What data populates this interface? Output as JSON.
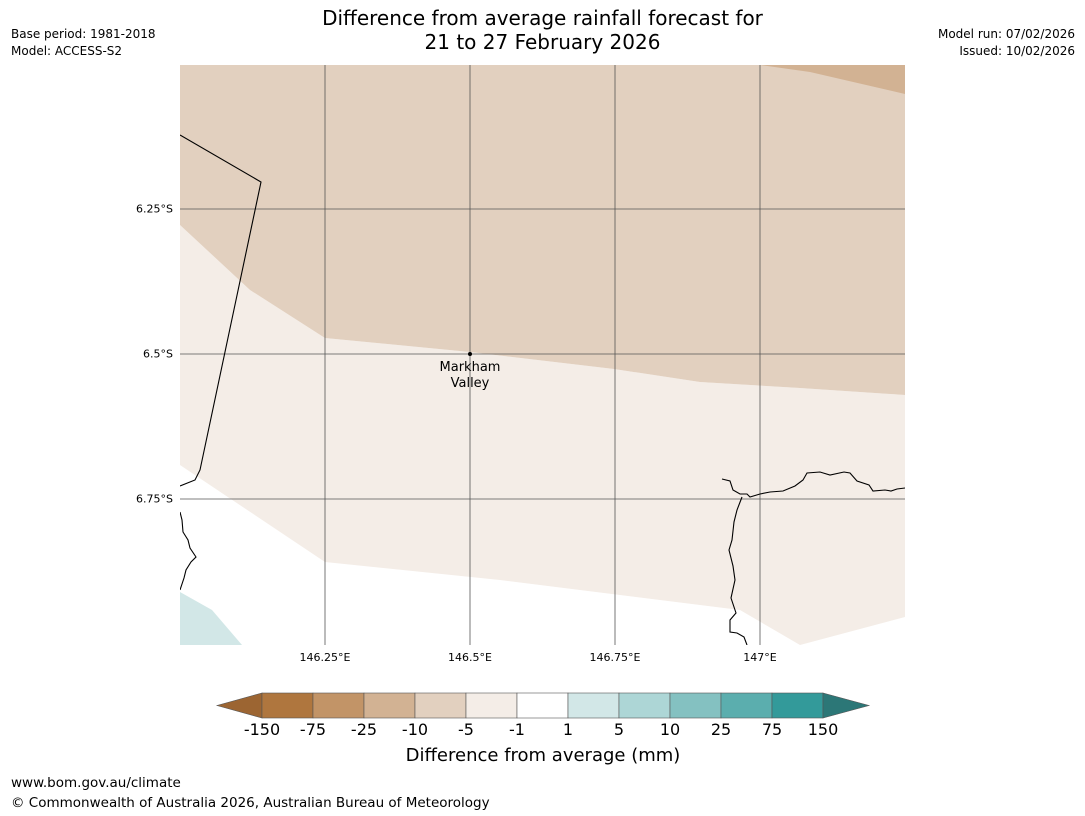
{
  "title": {
    "line1": "Difference from average rainfall forecast for",
    "line2": "21 to 27 February 2026"
  },
  "meta_left": {
    "base_period": "Base period: 1981-2018",
    "model": "Model: ACCESS-S2"
  },
  "meta_right": {
    "model_run": "Model run: 07/02/2026",
    "issued": "Issued: 10/02/2026"
  },
  "map": {
    "lat_ticks": [
      "6.25°S",
      "6.5°S",
      "6.75°S"
    ],
    "lon_ticks": [
      "146.25°E",
      "146.5°E",
      "146.75°E",
      "147°E"
    ],
    "place": {
      "line1": "Markham",
      "line2": "Valley"
    },
    "region_colors": {
      "drier_10_25": "#d2b293",
      "drier_5_10": "#e2d0bf",
      "drier_1_5": "#f4ede7",
      "near_average": "#ffffff",
      "wetter_1_5": "#d2e7e7"
    },
    "line_colors": {
      "coast": "#000000",
      "grid": "#555555"
    }
  },
  "legend": {
    "title": "Difference from average (mm)",
    "labels": [
      "-150",
      "-75",
      "-25",
      "-10",
      "-5",
      "-1",
      "1",
      "5",
      "10",
      "25",
      "75",
      "150"
    ],
    "colors": [
      "#9c6532",
      "#af763e",
      "#c29467",
      "#d2b293",
      "#e2d0bf",
      "#f4ede7",
      "#ffffff",
      "#d2e7e7",
      "#add6d6",
      "#84c1c1",
      "#5baeae",
      "#339a9a",
      "#2c7777"
    ]
  },
  "footer": {
    "url": "www.bom.gov.au/climate",
    "copyright": "© Commonwealth of Australia 2026, Australian Bureau of Meteorology"
  }
}
